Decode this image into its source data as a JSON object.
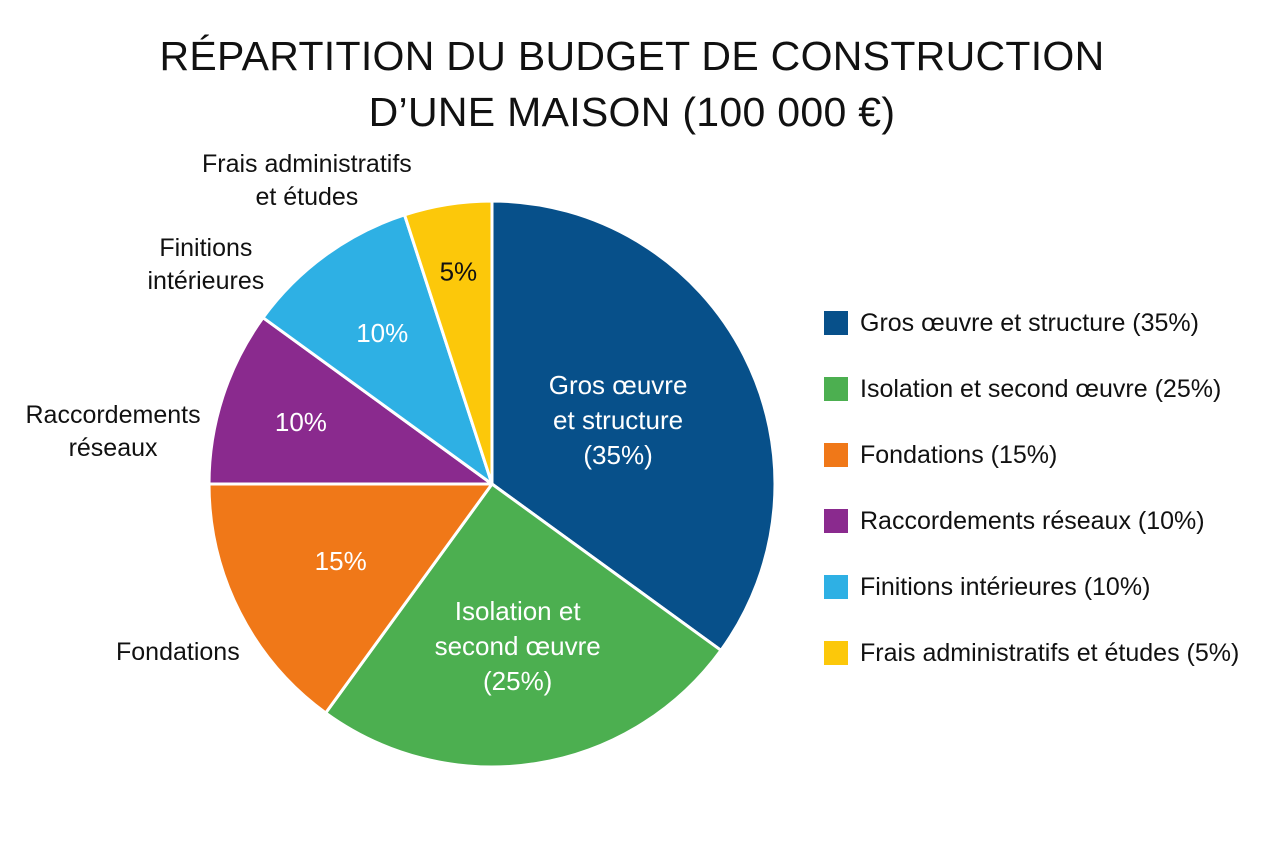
{
  "chart_data": {
    "type": "pie",
    "title_lines": [
      "RÉPARTITION DU BUDGET DE CONSTRUCTION",
      "D’UNE MAISON (100 000 €)"
    ],
    "unit": "%",
    "slices": [
      {
        "name": "Gros œuvre et structure",
        "value": 35,
        "color": "#07508A",
        "inner_label": [
          "Gros œuvre",
          "et structure",
          "(35%)"
        ],
        "inner_label_color": "#ffffff",
        "outer_label": [],
        "legend": "Gros œuvre et structure (35%)"
      },
      {
        "name": "Isolation et second œuvre",
        "value": 25,
        "color": "#4CAF50",
        "inner_label": [
          "Isolation et",
          "second œuvre",
          "(25%)"
        ],
        "inner_label_color": "#ffffff",
        "outer_label": [],
        "legend": "Isolation et second œuvre (25%)"
      },
      {
        "name": "Fondations",
        "value": 15,
        "color": "#F07818",
        "inner_label": [
          "15%"
        ],
        "inner_label_color": "#ffffff",
        "outer_label": [
          "Fondations"
        ],
        "legend": "Fondations (15%)"
      },
      {
        "name": "Raccordements réseaux",
        "value": 10,
        "color": "#8A2A8E",
        "inner_label": [
          "10%"
        ],
        "inner_label_color": "#ffffff",
        "outer_label": [
          "Raccordements",
          "réseaux"
        ],
        "legend": "Raccordements réseaux (10%)"
      },
      {
        "name": "Finitions intérieures",
        "value": 10,
        "color": "#2EB0E4",
        "inner_label": [
          "10%"
        ],
        "inner_label_color": "#ffffff",
        "outer_label": [
          "Finitions",
          "intérieures"
        ],
        "legend": "Finitions intérieures (10%)"
      },
      {
        "name": "Frais administratifs et études",
        "value": 5,
        "color": "#FCC80A",
        "inner_label": [
          "5%"
        ],
        "inner_label_color": "#111111",
        "outer_label": [
          "Frais administratifs",
          "et études"
        ],
        "legend": "Frais administratifs et études (5%)"
      }
    ],
    "legend_position": "right",
    "start_angle": "12 o'clock",
    "direction": "clockwise"
  }
}
